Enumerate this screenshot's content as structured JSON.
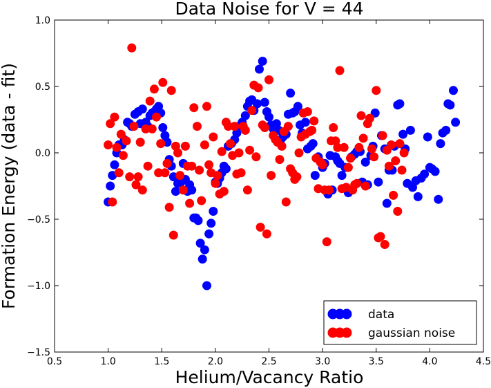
{
  "chart_data": {
    "type": "scatter",
    "title": "Data Noise for V = 44",
    "xlabel": "Helium/Vacancy Ratio",
    "ylabel": "Formation Energy (data - fit)",
    "xlim": [
      0.5,
      4.5
    ],
    "ylim": [
      -1.5,
      1.0
    ],
    "x_ticks": [
      0.5,
      1.0,
      1.5,
      2.0,
      2.5,
      3.0,
      3.5,
      4.0,
      4.5
    ],
    "x_tick_labels": [
      "0.5",
      "1.0",
      "1.5",
      "2.0",
      "2.5",
      "3.0",
      "3.5",
      "4.0",
      "4.5"
    ],
    "y_ticks": [
      -1.5,
      -1.0,
      -0.5,
      0.0,
      0.5,
      1.0
    ],
    "y_tick_labels": [
      "−1.5",
      "−1.0",
      "−0.5",
      "0.0",
      "0.5",
      "1.0"
    ],
    "grid": false,
    "legend_position": "bottom-right",
    "series": [
      {
        "name": "data",
        "color": "#0000ff",
        "points": [
          [
            1.0,
            -0.37
          ],
          [
            1.02,
            -0.25
          ],
          [
            1.04,
            -0.17
          ],
          [
            1.06,
            -0.09
          ],
          [
            1.08,
            0.0
          ],
          [
            1.1,
            0.06
          ],
          [
            1.13,
            0.06
          ],
          [
            1.15,
            0.1
          ],
          [
            1.18,
            0.23
          ],
          [
            1.2,
            0.22
          ],
          [
            1.22,
            0.2
          ],
          [
            1.25,
            0.29
          ],
          [
            1.28,
            0.31
          ],
          [
            1.3,
            0.22
          ],
          [
            1.32,
            0.33
          ],
          [
            1.35,
            0.23
          ],
          [
            1.37,
            0.2
          ],
          [
            1.39,
            0.28
          ],
          [
            1.41,
            0.3
          ],
          [
            1.43,
            0.31
          ],
          [
            1.45,
            0.33
          ],
          [
            1.47,
            0.35
          ],
          [
            1.49,
            0.3
          ],
          [
            1.51,
            0.19
          ],
          [
            1.53,
            0.13
          ],
          [
            1.55,
            0.08
          ],
          [
            1.57,
            -0.05
          ],
          [
            1.59,
            -0.1
          ],
          [
            1.61,
            -0.18
          ],
          [
            1.63,
            -0.29
          ],
          [
            1.65,
            -0.23
          ],
          [
            1.68,
            -0.22
          ],
          [
            1.7,
            -0.08
          ],
          [
            1.72,
            -0.2
          ],
          [
            1.74,
            -0.29
          ],
          [
            1.76,
            -0.24
          ],
          [
            1.78,
            -0.28
          ],
          [
            1.8,
            -0.49
          ],
          [
            1.82,
            -0.49
          ],
          [
            1.84,
            -0.51
          ],
          [
            1.86,
            -0.68
          ],
          [
            1.88,
            -0.8
          ],
          [
            1.9,
            -0.73
          ],
          [
            1.92,
            -1.0
          ],
          [
            1.94,
            -0.61
          ],
          [
            1.96,
            -0.53
          ],
          [
            1.98,
            -0.44
          ],
          [
            2.0,
            -0.22
          ],
          [
            2.02,
            -0.23
          ],
          [
            2.04,
            -0.19
          ],
          [
            2.06,
            -0.15
          ],
          [
            2.08,
            -0.1
          ],
          [
            2.1,
            -0.12
          ],
          [
            2.12,
            0.05
          ],
          [
            2.15,
            0.07
          ],
          [
            2.18,
            0.1
          ],
          [
            2.2,
            0.15
          ],
          [
            2.22,
            0.2
          ],
          [
            2.25,
            0.23
          ],
          [
            2.28,
            0.28
          ],
          [
            2.3,
            0.35
          ],
          [
            2.32,
            0.39
          ],
          [
            2.34,
            0.4
          ],
          [
            2.36,
            0.32
          ],
          [
            2.39,
            0.37
          ],
          [
            2.41,
            0.63
          ],
          [
            2.44,
            0.69
          ],
          [
            2.46,
            0.38
          ],
          [
            2.48,
            0.31
          ],
          [
            2.5,
            0.27
          ],
          [
            2.52,
            0.21
          ],
          [
            2.54,
            0.18
          ],
          [
            2.57,
            0.22
          ],
          [
            2.59,
            0.17
          ],
          [
            2.61,
            0.1
          ],
          [
            2.63,
            0.12
          ],
          [
            2.66,
            0.14
          ],
          [
            2.68,
            0.29
          ],
          [
            2.7,
            0.45
          ],
          [
            2.72,
            0.3
          ],
          [
            2.74,
            0.31
          ],
          [
            2.77,
            0.35
          ],
          [
            2.79,
            0.21
          ],
          [
            2.81,
            0.15
          ],
          [
            2.84,
            0.23
          ],
          [
            2.86,
            0.03
          ],
          [
            2.89,
            0.05
          ],
          [
            2.91,
            0.07
          ],
          [
            2.93,
            -0.17
          ],
          [
            2.96,
            -0.03
          ],
          [
            2.98,
            -0.07
          ],
          [
            3.0,
            -0.11
          ],
          [
            3.02,
            -0.08
          ],
          [
            3.05,
            -0.31
          ],
          [
            3.07,
            -0.02
          ],
          [
            3.09,
            -0.28
          ],
          [
            3.12,
            -0.03
          ],
          [
            3.14,
            -0.06
          ],
          [
            3.16,
            -0.08
          ],
          [
            3.18,
            -0.17
          ],
          [
            3.21,
            -0.11
          ],
          [
            3.24,
            -0.3
          ],
          [
            3.27,
            -0.03
          ],
          [
            3.3,
            -0.01
          ],
          [
            3.32,
            0.01
          ],
          [
            3.35,
            0.01
          ],
          [
            3.37,
            -0.22
          ],
          [
            3.4,
            -0.07
          ],
          [
            3.42,
            -0.24
          ],
          [
            3.45,
            -0.02
          ],
          [
            3.47,
            0.05
          ],
          [
            3.49,
            0.3
          ],
          [
            3.52,
            -0.22
          ],
          [
            3.55,
            0.13
          ],
          [
            3.58,
            0.03
          ],
          [
            3.6,
            -0.38
          ],
          [
            3.62,
            -0.13
          ],
          [
            3.65,
            -0.13
          ],
          [
            3.67,
            0.05
          ],
          [
            3.7,
            0.36
          ],
          [
            3.72,
            0.37
          ],
          [
            3.75,
            0.14
          ],
          [
            3.77,
            0.03
          ],
          [
            3.79,
            -0.23
          ],
          [
            3.82,
            0.17
          ],
          [
            3.84,
            -0.26
          ],
          [
            3.87,
            -0.21
          ],
          [
            3.89,
            -0.33
          ],
          [
            3.92,
            -0.19
          ],
          [
            3.95,
            -0.16
          ],
          [
            3.98,
            0.12
          ],
          [
            4.0,
            -0.11
          ],
          [
            4.02,
            -0.12
          ],
          [
            4.05,
            -0.14
          ],
          [
            4.08,
            -0.35
          ],
          [
            4.1,
            0.07
          ],
          [
            4.12,
            0.15
          ],
          [
            4.15,
            0.17
          ],
          [
            4.17,
            0.37
          ],
          [
            4.19,
            0.36
          ],
          [
            4.22,
            0.47
          ],
          [
            4.24,
            0.23
          ]
        ]
      },
      {
        "name": "gaussian noise",
        "color": "#ff0000",
        "points": [
          [
            1.0,
            0.06
          ],
          [
            1.02,
            0.22
          ],
          [
            1.04,
            -0.37
          ],
          [
            1.06,
            0.27
          ],
          [
            1.08,
            0.04
          ],
          [
            1.1,
            -0.15
          ],
          [
            1.12,
            0.14
          ],
          [
            1.14,
            -0.02
          ],
          [
            1.17,
            0.09
          ],
          [
            1.2,
            -0.18
          ],
          [
            1.22,
            0.79
          ],
          [
            1.24,
            0.2
          ],
          [
            1.26,
            -0.24
          ],
          [
            1.28,
            -0.18
          ],
          [
            1.3,
            0.08
          ],
          [
            1.32,
            -0.28
          ],
          [
            1.35,
            0.18
          ],
          [
            1.37,
            -0.1
          ],
          [
            1.39,
            0.39
          ],
          [
            1.41,
            0.18
          ],
          [
            1.43,
            0.48
          ],
          [
            1.45,
            0.27
          ],
          [
            1.47,
            -0.15
          ],
          [
            1.49,
            0.07
          ],
          [
            1.51,
            0.53
          ],
          [
            1.53,
            -0.15
          ],
          [
            1.55,
            -0.08
          ],
          [
            1.57,
            -0.41
          ],
          [
            1.59,
            0.47
          ],
          [
            1.61,
            -0.62
          ],
          [
            1.63,
            0.05
          ],
          [
            1.65,
            0.0
          ],
          [
            1.67,
            -0.17
          ],
          [
            1.7,
            -0.28
          ],
          [
            1.72,
            0.05
          ],
          [
            1.74,
            -0.1
          ],
          [
            1.76,
            -0.38
          ],
          [
            1.78,
            -0.1
          ],
          [
            1.8,
            0.34
          ],
          [
            1.83,
            0.2
          ],
          [
            1.85,
            -0.13
          ],
          [
            1.87,
            -0.36
          ],
          [
            1.9,
            0.06
          ],
          [
            1.92,
            0.35
          ],
          [
            1.94,
            -0.09
          ],
          [
            1.96,
            -0.15
          ],
          [
            1.98,
            0.12
          ],
          [
            2.0,
            -0.23
          ],
          [
            2.02,
            -0.17
          ],
          [
            2.04,
            -0.31
          ],
          [
            2.06,
            0.01
          ],
          [
            2.08,
            -0.29
          ],
          [
            2.1,
            0.23
          ],
          [
            2.12,
            0.2
          ],
          [
            2.14,
            0.07
          ],
          [
            2.16,
            -0.02
          ],
          [
            2.18,
            0.2
          ],
          [
            2.2,
            -0.16
          ],
          [
            2.22,
            0.0
          ],
          [
            2.24,
            -0.15
          ],
          [
            2.26,
            0.2
          ],
          [
            2.28,
            0.17
          ],
          [
            2.3,
            -0.28
          ],
          [
            2.32,
            0.02
          ],
          [
            2.34,
            0.32
          ],
          [
            2.36,
            0.51
          ],
          [
            2.38,
            -0.03
          ],
          [
            2.4,
            0.49
          ],
          [
            2.42,
            -0.56
          ],
          [
            2.44,
            0.21
          ],
          [
            2.46,
            0.19
          ],
          [
            2.48,
            -0.61
          ],
          [
            2.5,
            0.55
          ],
          [
            2.52,
            -0.17
          ],
          [
            2.54,
            0.13
          ],
          [
            2.56,
            0.1
          ],
          [
            2.58,
            0.08
          ],
          [
            2.6,
            -0.05
          ],
          [
            2.62,
            0.05
          ],
          [
            2.64,
            0.16
          ],
          [
            2.66,
            -0.37
          ],
          [
            2.68,
            0.2
          ],
          [
            2.7,
            -0.12
          ],
          [
            2.72,
            -0.15
          ],
          [
            2.74,
            -0.2
          ],
          [
            2.76,
            -0.18
          ],
          [
            2.78,
            0.0
          ],
          [
            2.8,
            0.12
          ],
          [
            2.82,
            0.3
          ],
          [
            2.84,
            0.14
          ],
          [
            2.86,
            0.31
          ],
          [
            2.88,
            0.16
          ],
          [
            2.9,
            0.17
          ],
          [
            2.92,
            0.24
          ],
          [
            2.94,
            -0.04
          ],
          [
            2.96,
            -0.27
          ],
          [
            2.98,
            -0.07
          ],
          [
            3.0,
            -0.09
          ],
          [
            3.02,
            -0.28
          ],
          [
            3.04,
            -0.67
          ],
          [
            3.06,
            -0.28
          ],
          [
            3.08,
            0.09
          ],
          [
            3.1,
            0.19
          ],
          [
            3.12,
            0.09
          ],
          [
            3.14,
            0.04
          ],
          [
            3.16,
            0.62
          ],
          [
            3.18,
            -0.27
          ],
          [
            3.2,
            0.04
          ],
          [
            3.22,
            -0.26
          ],
          [
            3.24,
            -0.11
          ],
          [
            3.26,
            -0.04
          ],
          [
            3.28,
            -0.28
          ],
          [
            3.3,
            -0.24
          ],
          [
            3.32,
            -0.23
          ],
          [
            3.34,
            0.04
          ],
          [
            3.36,
            0.28
          ],
          [
            3.38,
            0.11
          ],
          [
            3.4,
            -0.25
          ],
          [
            3.42,
            0.22
          ],
          [
            3.44,
            0.26
          ],
          [
            3.46,
            0.03
          ],
          [
            3.48,
            -0.03
          ],
          [
            3.5,
            0.47
          ],
          [
            3.52,
            -0.64
          ],
          [
            3.54,
            -0.63
          ],
          [
            3.56,
            0.13
          ],
          [
            3.58,
            -0.69
          ],
          [
            3.6,
            0.02
          ],
          [
            3.62,
            -0.1
          ],
          [
            3.64,
            0.06
          ],
          [
            3.66,
            -0.32
          ],
          [
            3.68,
            -0.06
          ],
          [
            3.7,
            -0.44
          ],
          [
            3.72,
            0.07
          ],
          [
            3.74,
            -0.13
          ],
          [
            3.76,
            0.0
          ]
        ]
      }
    ]
  }
}
